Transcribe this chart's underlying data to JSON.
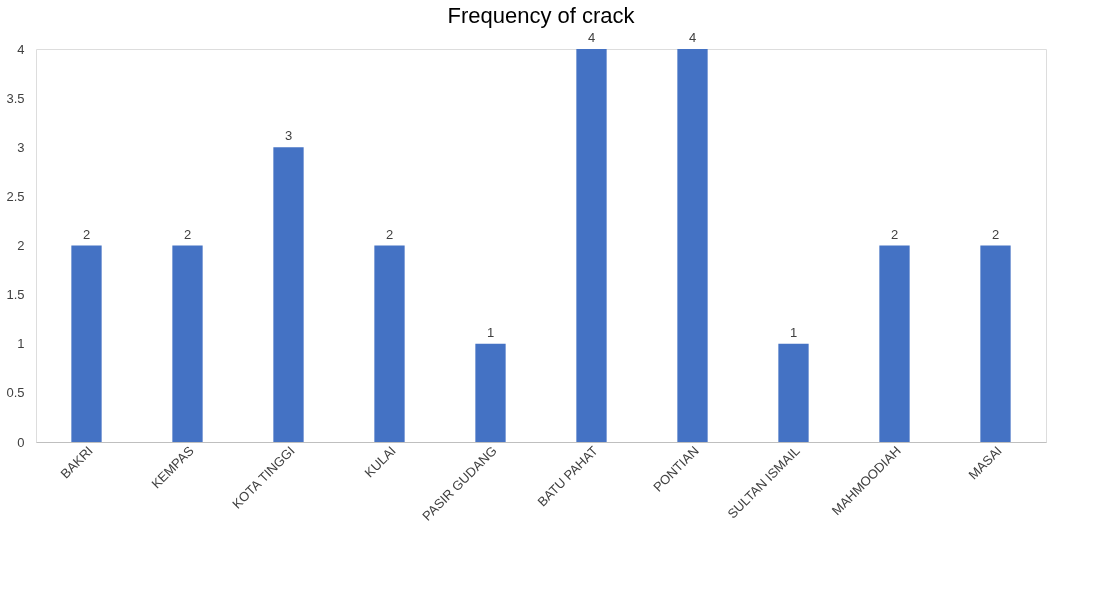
{
  "chart_data": {
    "type": "bar",
    "title": "Frequency of crack",
    "categories": [
      "BAKRI",
      "KEMPAS",
      "KOTA TINGGI",
      "KULAI",
      "PASIR GUDANG",
      "BATU PAHAT",
      "PONTIAN",
      "SULTAN ISMAIL",
      "MAHMOODIAH",
      "MASAI"
    ],
    "values": [
      2,
      2,
      3,
      2,
      1,
      4,
      4,
      1,
      2,
      2
    ],
    "color": "#4472c4",
    "ylim": [
      0,
      4
    ],
    "yticks": [
      0,
      0.5,
      1,
      1.5,
      2,
      2.5,
      3,
      3.5,
      4
    ],
    "grid": false,
    "data_labels": true
  }
}
